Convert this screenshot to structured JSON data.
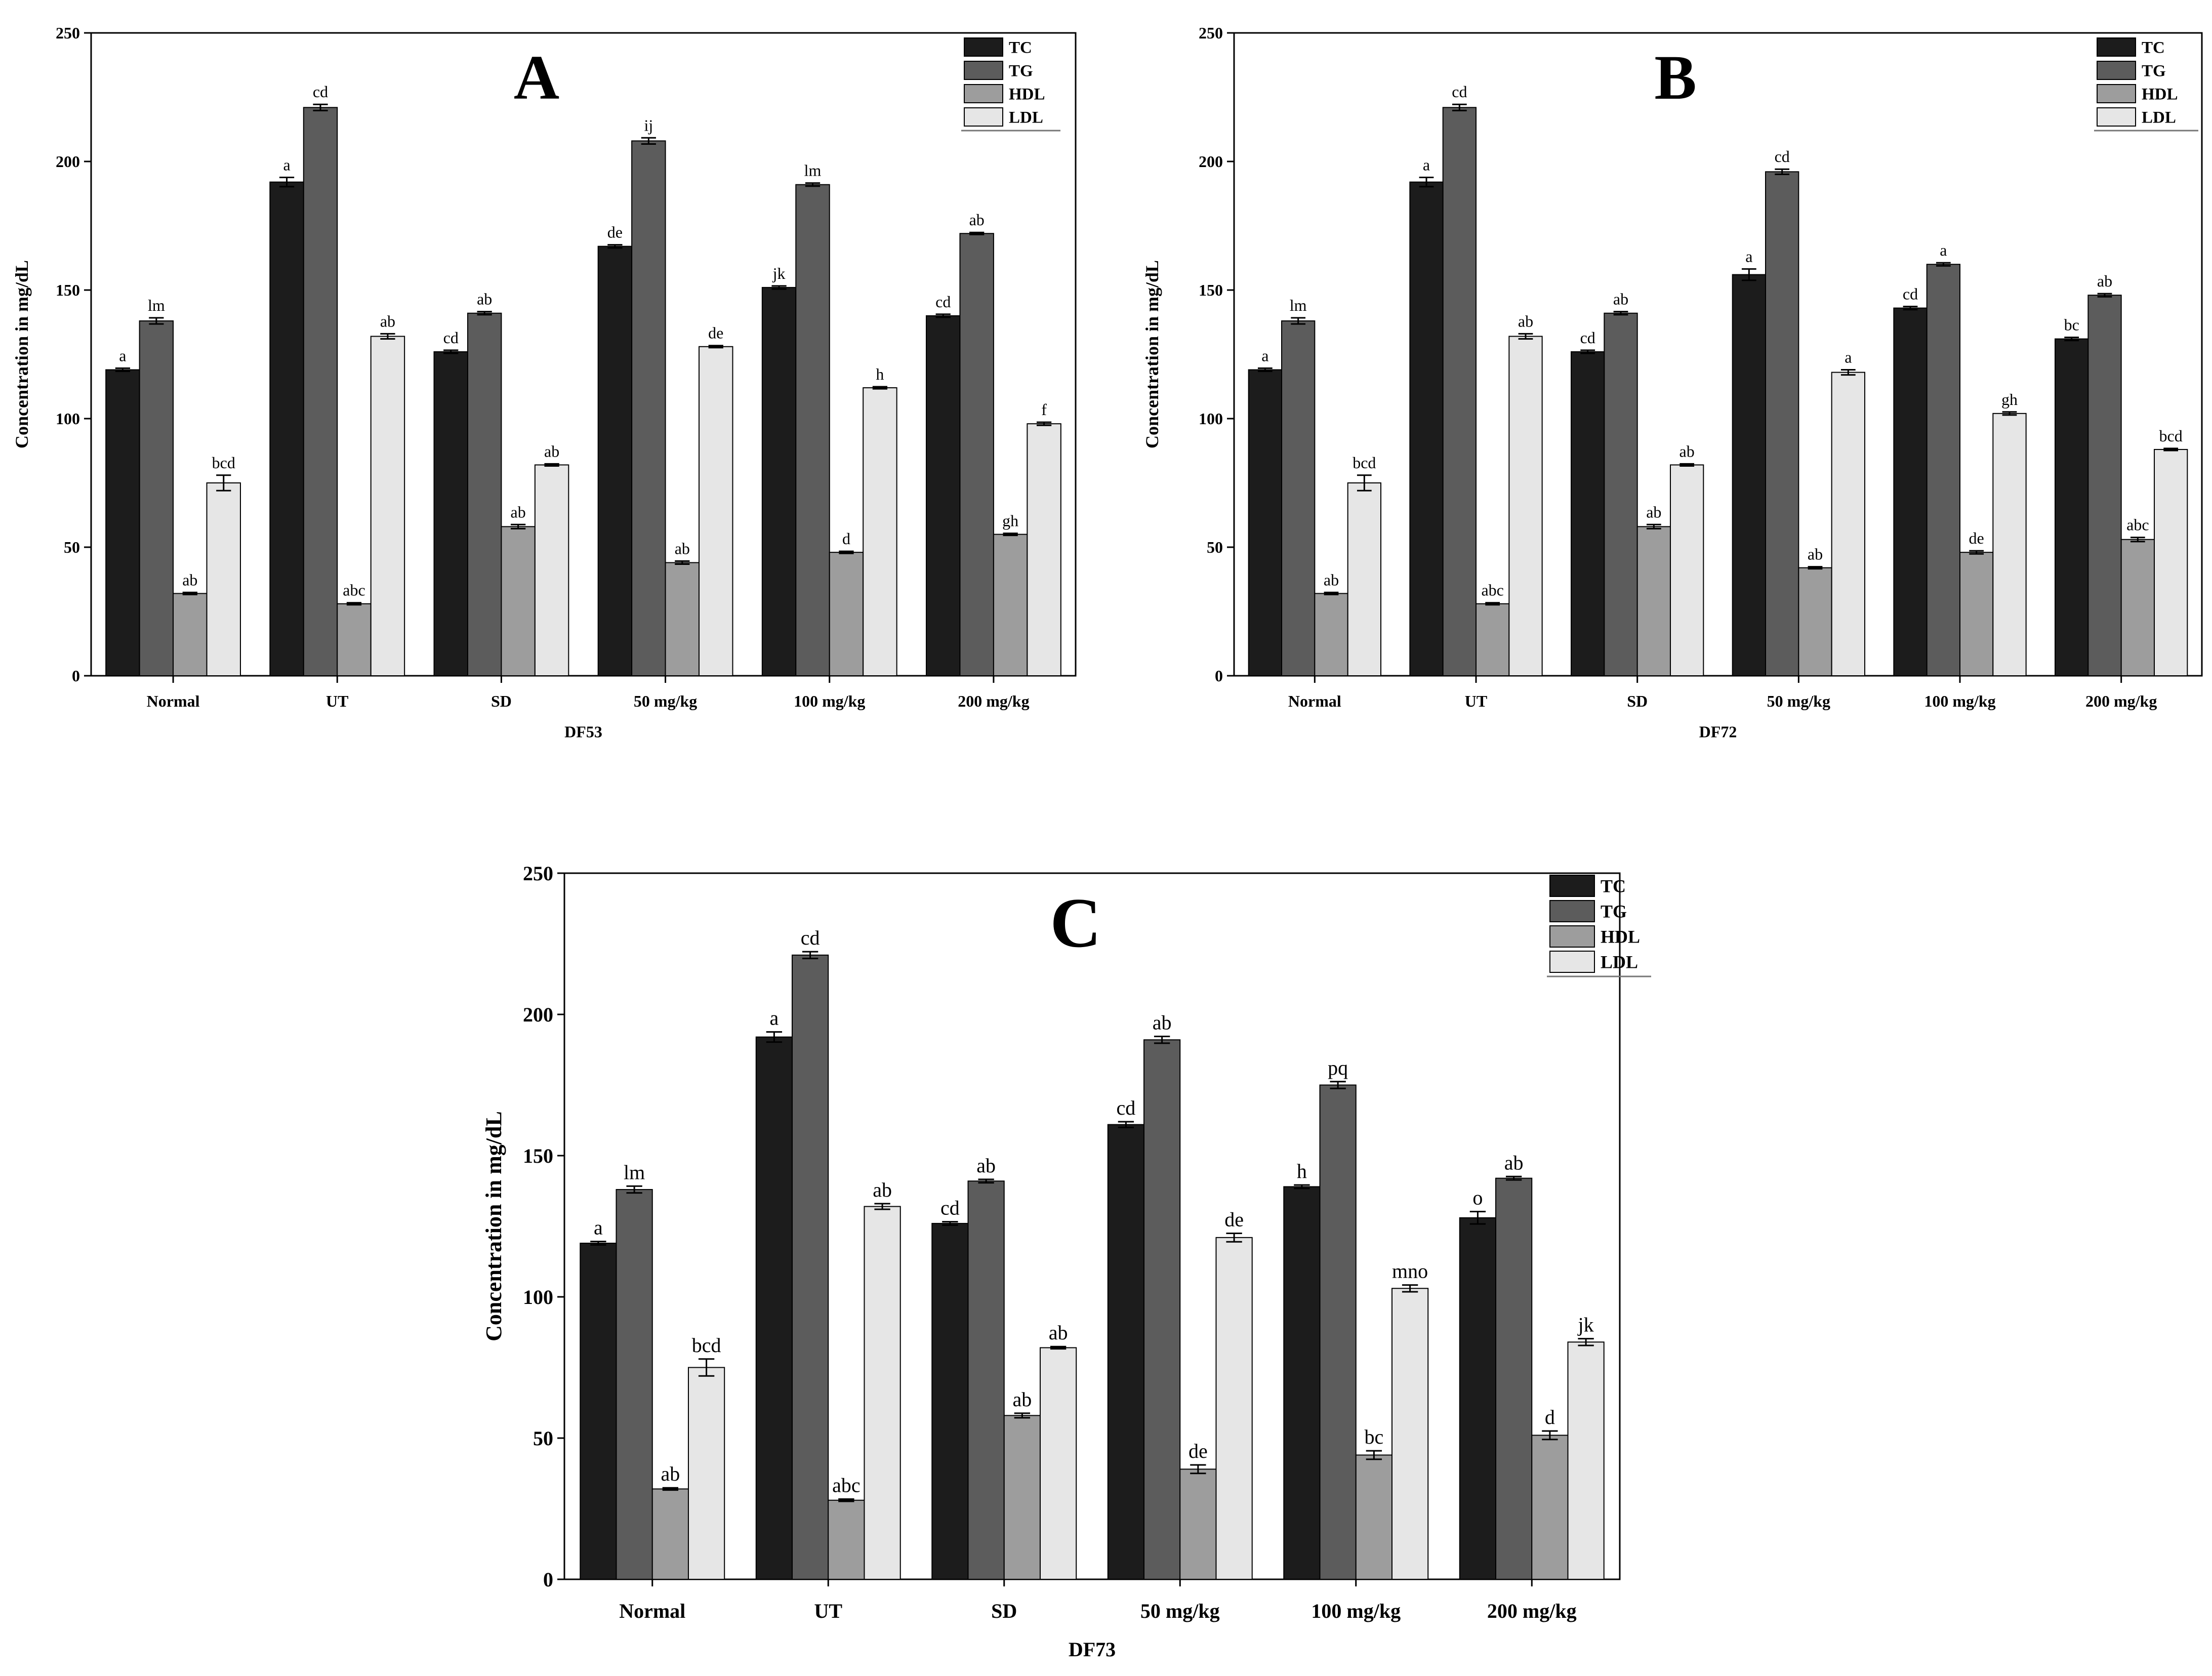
{
  "legend_labels": [
    "TC",
    "TG",
    "HDL",
    "LDL"
  ],
  "series_colors": [
    "#1c1c1c",
    "#5c5c5c",
    "#9d9d9d",
    "#e6e6e6"
  ],
  "chart_data": [
    {
      "panel_label": "A",
      "type": "bar",
      "title": "",
      "xlabel": "DF53",
      "ylabel": "Concentration in mg/dL",
      "ylim": [
        0,
        250
      ],
      "yticks": [
        0,
        50,
        100,
        150,
        200,
        250
      ],
      "categories": [
        "Normal",
        "UT",
        "SD",
        "50 mg/kg",
        "100 mg/kg",
        "200 mg/kg"
      ],
      "series": [
        {
          "name": "TC",
          "values": [
            119,
            192,
            126,
            167,
            151,
            140
          ],
          "errors": [
            0.6,
            1.8,
            0.6,
            0.6,
            0.6,
            0.6
          ],
          "labels": [
            "a",
            "a",
            "cd",
            "de",
            "jk",
            "cd"
          ]
        },
        {
          "name": "TG",
          "values": [
            138,
            221,
            141,
            208,
            191,
            172
          ],
          "errors": [
            1.2,
            1.2,
            0.6,
            1.2,
            0.6,
            0.4
          ],
          "labels": [
            "lm",
            "cd",
            "ab",
            "ij",
            "lm",
            "ab"
          ]
        },
        {
          "name": "HDL",
          "values": [
            32,
            28,
            58,
            44,
            48,
            55
          ],
          "errors": [
            0.4,
            0.4,
            0.8,
            0.6,
            0.4,
            0.4
          ],
          "labels": [
            "ab",
            "abc",
            "ab",
            "ab",
            "d",
            "gh"
          ]
        },
        {
          "name": "LDL",
          "values": [
            75,
            132,
            82,
            128,
            112,
            98
          ],
          "errors": [
            3,
            1,
            0.4,
            0.4,
            0.4,
            0.6
          ],
          "labels": [
            "bcd",
            "ab",
            "ab",
            "de",
            "h",
            "f"
          ]
        }
      ]
    },
    {
      "panel_label": "B",
      "type": "bar",
      "title": "",
      "xlabel": "DF72",
      "ylabel": "Concentration in mg/dL",
      "ylim": [
        0,
        250
      ],
      "yticks": [
        0,
        50,
        100,
        150,
        200,
        250
      ],
      "categories": [
        "Normal",
        "UT",
        "SD",
        "50 mg/kg",
        "100 mg/kg",
        "200 mg/kg"
      ],
      "series": [
        {
          "name": "TC",
          "values": [
            119,
            192,
            126,
            156,
            143,
            131
          ],
          "errors": [
            0.6,
            1.8,
            0.6,
            2.2,
            0.6,
            0.6
          ],
          "labels": [
            "a",
            "a",
            "cd",
            "a",
            "cd",
            "bc"
          ]
        },
        {
          "name": "TG",
          "values": [
            138,
            221,
            141,
            196,
            160,
            148
          ],
          "errors": [
            1.2,
            1.2,
            0.6,
            1,
            0.6,
            0.6
          ],
          "labels": [
            "lm",
            "cd",
            "ab",
            "cd",
            "a",
            "ab"
          ]
        },
        {
          "name": "HDL",
          "values": [
            32,
            28,
            58,
            42,
            48,
            53
          ],
          "errors": [
            0.4,
            0.4,
            0.8,
            0.4,
            0.6,
            0.8
          ],
          "labels": [
            "ab",
            "abc",
            "ab",
            "ab",
            "de",
            "abc"
          ]
        },
        {
          "name": "LDL",
          "values": [
            75,
            132,
            82,
            118,
            102,
            88
          ],
          "errors": [
            3,
            1,
            0.4,
            1,
            0.6,
            0.4
          ],
          "labels": [
            "bcd",
            "ab",
            "ab",
            "a",
            "gh",
            "bcd"
          ]
        }
      ]
    },
    {
      "panel_label": "C",
      "type": "bar",
      "title": "",
      "xlabel": "DF73",
      "ylabel": "Concentration in mg/dL",
      "ylim": [
        0,
        250
      ],
      "yticks": [
        0,
        50,
        100,
        150,
        200,
        250
      ],
      "categories": [
        "Normal",
        "UT",
        "SD",
        "50 mg/kg",
        "100 mg/kg",
        "200 mg/kg"
      ],
      "series": [
        {
          "name": "TC",
          "values": [
            119,
            192,
            126,
            161,
            139,
            128
          ],
          "errors": [
            0.6,
            1.8,
            0.6,
            1,
            0.6,
            2.2
          ],
          "labels": [
            "a",
            "a",
            "cd",
            "cd",
            "h",
            "o"
          ]
        },
        {
          "name": "TG",
          "values": [
            138,
            221,
            141,
            191,
            175,
            142
          ],
          "errors": [
            1.2,
            1.2,
            0.6,
            1.2,
            1.2,
            0.6
          ],
          "labels": [
            "lm",
            "cd",
            "ab",
            "ab",
            "pq",
            "ab"
          ]
        },
        {
          "name": "HDL",
          "values": [
            32,
            28,
            58,
            39,
            44,
            51
          ],
          "errors": [
            0.4,
            0.4,
            0.8,
            1.5,
            1.5,
            1.5
          ],
          "labels": [
            "ab",
            "abc",
            "ab",
            "de",
            "bc",
            "d"
          ]
        },
        {
          "name": "LDL",
          "values": [
            75,
            132,
            82,
            121,
            103,
            84
          ],
          "errors": [
            3,
            1,
            0.4,
            1.5,
            1.2,
            1.2
          ],
          "labels": [
            "bcd",
            "ab",
            "ab",
            "de",
            "mno",
            "jk"
          ]
        }
      ]
    }
  ]
}
